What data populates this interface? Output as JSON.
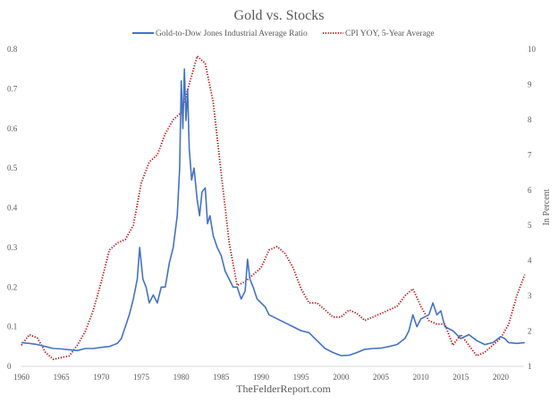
{
  "chart_data": {
    "type": "line",
    "title": "Gold vs. Stocks",
    "source": "TheFelderReport.com",
    "xlabel": "",
    "ylabel_left": "",
    "ylabel_right": "In Percent",
    "xlim": [
      1960,
      2023.5
    ],
    "ylim_left": [
      0,
      0.8
    ],
    "ylim_right": [
      1,
      10
    ],
    "x_ticks": [
      "1960",
      "1965",
      "1970",
      "1975",
      "1980",
      "1985",
      "1990",
      "1995",
      "2000",
      "2005",
      "2010",
      "2015",
      "2020"
    ],
    "y_left_ticks": [
      "0",
      "0.1",
      "0.2",
      "0.3",
      "0.4",
      "0.5",
      "0.6",
      "0.7",
      "0.8"
    ],
    "y_right_ticks": [
      "1",
      "2",
      "3",
      "4",
      "5",
      "6",
      "7",
      "8",
      "9",
      "10"
    ],
    "legend_position": "top-center",
    "grid": false,
    "series": [
      {
        "name": "Gold-to-Dow Jones Industrial Average Ratio",
        "axis": "left",
        "color": "#4472C4",
        "style": "solid",
        "x": [
          1960,
          1961,
          1962,
          1963,
          1964,
          1965,
          1966,
          1967,
          1968,
          1969,
          1970,
          1971,
          1972,
          1972.5,
          1973,
          1973.5,
          1974,
          1974.5,
          1974.8,
          1975.2,
          1975.6,
          1976,
          1976.5,
          1977,
          1977.5,
          1978,
          1978.5,
          1979,
          1979.5,
          1979.8,
          1980,
          1980.2,
          1980.4,
          1980.6,
          1980.8,
          1981,
          1981.3,
          1981.6,
          1982,
          1982.3,
          1982.6,
          1983,
          1983.3,
          1983.6,
          1984,
          1984.5,
          1985,
          1985.5,
          1986,
          1986.5,
          1987,
          1987.5,
          1988,
          1988.3,
          1988.6,
          1989,
          1989.5,
          1990,
          1990.5,
          1991,
          1992,
          1993,
          1994,
          1995,
          1996,
          1997,
          1998,
          1999,
          2000,
          2001,
          2002,
          2003,
          2004,
          2005,
          2006,
          2007,
          2008,
          2008.5,
          2009,
          2009.5,
          2010,
          2011,
          2011.5,
          2012,
          2012.5,
          2013,
          2014,
          2015,
          2016,
          2017,
          2018,
          2019,
          2020,
          2020.5,
          2021,
          2022,
          2023
        ],
        "values": [
          0.06,
          0.058,
          0.055,
          0.05,
          0.045,
          0.044,
          0.042,
          0.04,
          0.045,
          0.045,
          0.048,
          0.05,
          0.058,
          0.07,
          0.1,
          0.13,
          0.17,
          0.22,
          0.3,
          0.22,
          0.2,
          0.16,
          0.18,
          0.16,
          0.2,
          0.2,
          0.26,
          0.3,
          0.38,
          0.5,
          0.72,
          0.6,
          0.75,
          0.62,
          0.7,
          0.55,
          0.47,
          0.5,
          0.42,
          0.38,
          0.44,
          0.45,
          0.36,
          0.38,
          0.33,
          0.3,
          0.28,
          0.24,
          0.22,
          0.2,
          0.2,
          0.17,
          0.19,
          0.27,
          0.22,
          0.2,
          0.17,
          0.16,
          0.15,
          0.13,
          0.12,
          0.11,
          0.1,
          0.09,
          0.085,
          0.065,
          0.045,
          0.035,
          0.027,
          0.028,
          0.035,
          0.043,
          0.045,
          0.046,
          0.05,
          0.055,
          0.07,
          0.09,
          0.13,
          0.1,
          0.12,
          0.13,
          0.16,
          0.13,
          0.14,
          0.1,
          0.09,
          0.07,
          0.08,
          0.065,
          0.055,
          0.06,
          0.075,
          0.07,
          0.06,
          0.058,
          0.06
        ]
      },
      {
        "name": "CPI YOY, 5-Year Average",
        "axis": "right",
        "color": "#C00000",
        "style": "dotted",
        "x": [
          1960,
          1961,
          1962,
          1963,
          1964,
          1965,
          1966,
          1967,
          1968,
          1969,
          1970,
          1971,
          1972,
          1973,
          1974,
          1975,
          1976,
          1977,
          1978,
          1979,
          1980,
          1981,
          1982,
          1983,
          1984,
          1985,
          1986,
          1987,
          1988,
          1989,
          1990,
          1991,
          1992,
          1993,
          1994,
          1995,
          1996,
          1997,
          1998,
          1999,
          2000,
          2001,
          2002,
          2003,
          2004,
          2005,
          2006,
          2007,
          2008,
          2009,
          2010,
          2011,
          2012,
          2013,
          2014,
          2015,
          2016,
          2017,
          2018,
          2019,
          2020,
          2021,
          2022,
          2023
        ],
        "values": [
          1.6,
          1.9,
          1.8,
          1.4,
          1.2,
          1.25,
          1.3,
          1.6,
          2.0,
          2.6,
          3.4,
          4.3,
          4.5,
          4.6,
          5.0,
          6.2,
          6.8,
          7.0,
          7.6,
          8.0,
          8.2,
          9.0,
          9.8,
          9.6,
          8.5,
          6.5,
          4.5,
          3.3,
          3.4,
          3.6,
          3.8,
          4.3,
          4.4,
          4.2,
          3.8,
          3.2,
          2.8,
          2.8,
          2.6,
          2.4,
          2.4,
          2.6,
          2.5,
          2.3,
          2.4,
          2.5,
          2.6,
          2.7,
          3.0,
          3.2,
          2.7,
          2.3,
          2.2,
          2.2,
          1.6,
          1.9,
          1.6,
          1.3,
          1.4,
          1.6,
          1.8,
          2.2,
          3.0,
          3.6
        ]
      }
    ]
  }
}
